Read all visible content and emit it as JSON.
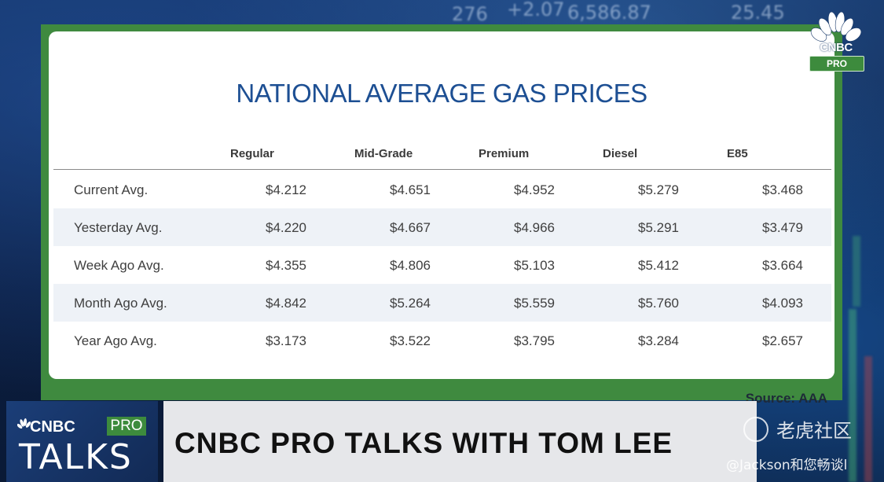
{
  "title": "NATIONAL AVERAGE GAS PRICES",
  "columns": [
    "Regular",
    "Mid-Grade",
    "Premium",
    "Diesel",
    "E85"
  ],
  "rows": [
    {
      "label": "Current Avg.",
      "values": [
        "$4.212",
        "$4.651",
        "$4.952",
        "$5.279",
        "$3.468"
      ]
    },
    {
      "label": "Yesterday Avg.",
      "values": [
        "$4.220",
        "$4.667",
        "$4.966",
        "$5.291",
        "$3.479"
      ]
    },
    {
      "label": "Week Ago Avg.",
      "values": [
        "$4.355",
        "$4.806",
        "$5.103",
        "$5.412",
        "$3.664"
      ]
    },
    {
      "label": "Month Ago Avg.",
      "values": [
        "$4.842",
        "$5.264",
        "$5.559",
        "$5.760",
        "$4.093"
      ]
    },
    {
      "label": "Year Ago Avg.",
      "values": [
        "$3.173",
        "$3.522",
        "$3.795",
        "$3.284",
        "$2.657"
      ]
    }
  ],
  "source": "Source: AAA",
  "logo": {
    "wordmark": "CNBC",
    "badge": "PRO",
    "icon": "peacock-icon"
  },
  "lower_third": {
    "brand": "CNBC",
    "badge": "PRO",
    "show_name": "TALKS",
    "headline": "CNBC PRO TALKS WITH TOM LEE"
  },
  "watermark": {
    "brand": "老虎社区",
    "user": "@Jackson和您畅谈l"
  },
  "background_ticker": [
    "+2.07",
    "6,586.87",
    "25.45"
  ],
  "colors": {
    "board_green": "#3f8a3f",
    "title_blue": "#1d4f93",
    "row_stripe": "#eef2f7",
    "pro_green": "#3d8b3d"
  }
}
